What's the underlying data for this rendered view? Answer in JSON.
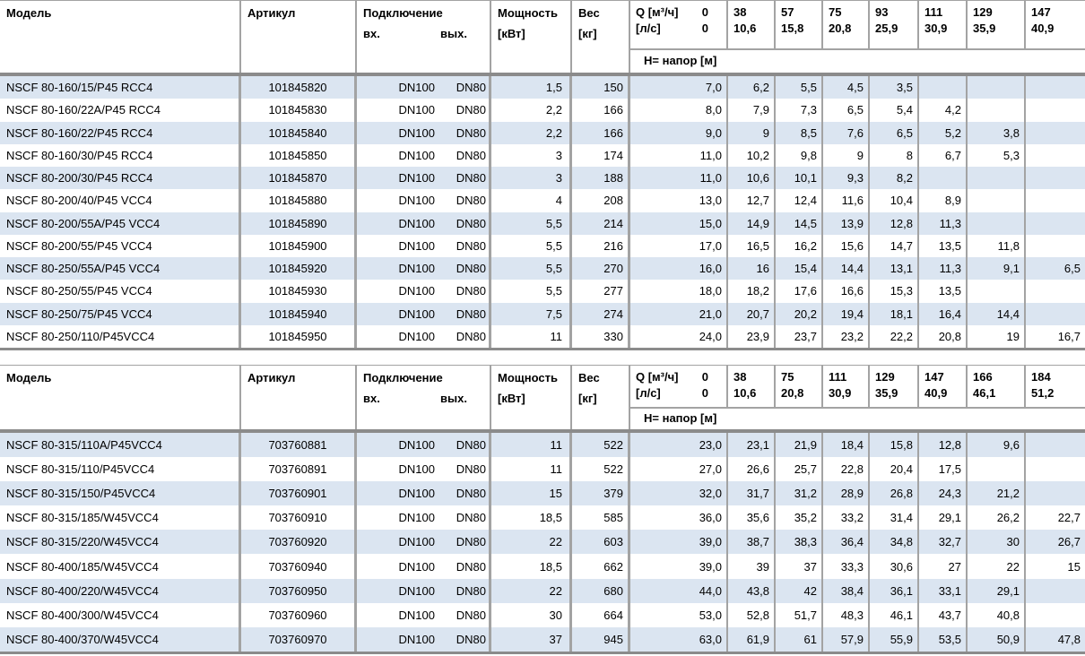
{
  "colors": {
    "stripe": "#dbe5f1",
    "grid": "#a3a3a3",
    "strong_grid": "#8b8b8b",
    "text": "#000000"
  },
  "labels": {
    "model": "Модель",
    "article": "Артикул",
    "connection": "Подключение",
    "conn_in": "вх.",
    "conn_out": "вых.",
    "power_line1": "Мощность",
    "power_line2": "[кВт]",
    "weight_line1": "Вес",
    "weight_line2": "[кг]",
    "q_line1": "Q [м³/ч]",
    "q_line2": "[л/с]",
    "head_row": "H= напор [м]"
  },
  "tables": [
    {
      "q_m3h": [
        "0",
        "38",
        "57",
        "75",
        "93",
        "111",
        "129",
        "147"
      ],
      "q_ls": [
        "0",
        "10,6",
        "15,8",
        "20,8",
        "25,9",
        "30,9",
        "35,9",
        "40,9"
      ],
      "rows": [
        {
          "model": "NSCF 80-160/15/P45 RCC4",
          "article": "101845820",
          "conn_in": "DN100",
          "conn_out": "DN80",
          "power": "1,5",
          "weight": "150",
          "h": [
            "7,0",
            "6,2",
            "5,5",
            "4,5",
            "3,5",
            "",
            "",
            ""
          ]
        },
        {
          "model": "NSCF 80-160/22A/P45 RCC4",
          "article": "101845830",
          "conn_in": "DN100",
          "conn_out": "DN80",
          "power": "2,2",
          "weight": "166",
          "h": [
            "8,0",
            "7,9",
            "7,3",
            "6,5",
            "5,4",
            "4,2",
            "",
            ""
          ]
        },
        {
          "model": "NSCF 80-160/22/P45 RCC4",
          "article": "101845840",
          "conn_in": "DN100",
          "conn_out": "DN80",
          "power": "2,2",
          "weight": "166",
          "h": [
            "9,0",
            "9",
            "8,5",
            "7,6",
            "6,5",
            "5,2",
            "3,8",
            ""
          ]
        },
        {
          "model": "NSCF 80-160/30/P45 RCC4",
          "article": "101845850",
          "conn_in": "DN100",
          "conn_out": "DN80",
          "power": "3",
          "weight": "174",
          "h": [
            "11,0",
            "10,2",
            "9,8",
            "9",
            "8",
            "6,7",
            "5,3",
            ""
          ]
        },
        {
          "model": "NSCF 80-200/30/P45 RCC4",
          "article": "101845870",
          "conn_in": "DN100",
          "conn_out": "DN80",
          "power": "3",
          "weight": "188",
          "h": [
            "11,0",
            "10,6",
            "10,1",
            "9,3",
            "8,2",
            "",
            "",
            ""
          ]
        },
        {
          "model": "NSCF 80-200/40/P45 VCC4",
          "article": "101845880",
          "conn_in": "DN100",
          "conn_out": "DN80",
          "power": "4",
          "weight": "208",
          "h": [
            "13,0",
            "12,7",
            "12,4",
            "11,6",
            "10,4",
            "8,9",
            "",
            ""
          ]
        },
        {
          "model": "NSCF 80-200/55A/P45 VCC4",
          "article": "101845890",
          "conn_in": "DN100",
          "conn_out": "DN80",
          "power": "5,5",
          "weight": "214",
          "h": [
            "15,0",
            "14,9",
            "14,5",
            "13,9",
            "12,8",
            "11,3",
            "",
            ""
          ]
        },
        {
          "model": "NSCF 80-200/55/P45 VCC4",
          "article": "101845900",
          "conn_in": "DN100",
          "conn_out": "DN80",
          "power": "5,5",
          "weight": "216",
          "h": [
            "17,0",
            "16,5",
            "16,2",
            "15,6",
            "14,7",
            "13,5",
            "11,8",
            ""
          ]
        },
        {
          "model": "NSCF 80-250/55A/P45 VCC4",
          "article": "101845920",
          "conn_in": "DN100",
          "conn_out": "DN80",
          "power": "5,5",
          "weight": "270",
          "h": [
            "16,0",
            "16",
            "15,4",
            "14,4",
            "13,1",
            "11,3",
            "9,1",
            "6,5"
          ]
        },
        {
          "model": "NSCF 80-250/55/P45 VCC4",
          "article": "101845930",
          "conn_in": "DN100",
          "conn_out": "DN80",
          "power": "5,5",
          "weight": "277",
          "h": [
            "18,0",
            "18,2",
            "17,6",
            "16,6",
            "15,3",
            "13,5",
            "",
            ""
          ]
        },
        {
          "model": "NSCF 80-250/75/P45 VCC4",
          "article": "101845940",
          "conn_in": "DN100",
          "conn_out": "DN80",
          "power": "7,5",
          "weight": "274",
          "h": [
            "21,0",
            "20,7",
            "20,2",
            "19,4",
            "18,1",
            "16,4",
            "14,4",
            ""
          ]
        },
        {
          "model": "NSCF 80-250/110/P45VCC4",
          "article": "101845950",
          "conn_in": "DN100",
          "conn_out": "DN80",
          "power": "11",
          "weight": "330",
          "h": [
            "24,0",
            "23,9",
            "23,7",
            "23,2",
            "22,2",
            "20,8",
            "19",
            "16,7"
          ]
        }
      ]
    },
    {
      "q_m3h": [
        "0",
        "38",
        "75",
        "111",
        "129",
        "147",
        "166",
        "184"
      ],
      "q_ls": [
        "0",
        "10,6",
        "20,8",
        "30,9",
        "35,9",
        "40,9",
        "46,1",
        "51,2"
      ],
      "rows": [
        {
          "model": "NSCF 80-315/110A/P45VCC4",
          "article": "703760881",
          "conn_in": "DN100",
          "conn_out": "DN80",
          "power": "11",
          "weight": "522",
          "h": [
            "23,0",
            "23,1",
            "21,9",
            "18,4",
            "15,8",
            "12,8",
            "9,6",
            ""
          ]
        },
        {
          "model": "NSCF 80-315/110/P45VCC4",
          "article": "703760891",
          "conn_in": "DN100",
          "conn_out": "DN80",
          "power": "11",
          "weight": "522",
          "h": [
            "27,0",
            "26,6",
            "25,7",
            "22,8",
            "20,4",
            "17,5",
            "",
            ""
          ]
        },
        {
          "model": "NSCF 80-315/150/P45VCC4",
          "article": "703760901",
          "conn_in": "DN100",
          "conn_out": "DN80",
          "power": "15",
          "weight": "379",
          "h": [
            "32,0",
            "31,7",
            "31,2",
            "28,9",
            "26,8",
            "24,3",
            "21,2",
            ""
          ]
        },
        {
          "model": "NSCF 80-315/185/W45VCC4",
          "article": "703760910",
          "conn_in": "DN100",
          "conn_out": "DN80",
          "power": "18,5",
          "weight": "585",
          "h": [
            "36,0",
            "35,6",
            "35,2",
            "33,2",
            "31,4",
            "29,1",
            "26,2",
            "22,7"
          ]
        },
        {
          "model": "NSCF 80-315/220/W45VCC4",
          "article": "703760920",
          "conn_in": "DN100",
          "conn_out": "DN80",
          "power": "22",
          "weight": "603",
          "h": [
            "39,0",
            "38,7",
            "38,3",
            "36,4",
            "34,8",
            "32,7",
            "30",
            "26,7"
          ]
        },
        {
          "model": "NSCF 80-400/185/W45VCC4",
          "article": "703760940",
          "conn_in": "DN100",
          "conn_out": "DN80",
          "power": "18,5",
          "weight": "662",
          "h": [
            "39,0",
            "39",
            "37",
            "33,3",
            "30,6",
            "27",
            "22",
            "15"
          ]
        },
        {
          "model": "NSCF 80-400/220/W45VCC4",
          "article": "703760950",
          "conn_in": "DN100",
          "conn_out": "DN80",
          "power": "22",
          "weight": "680",
          "h": [
            "44,0",
            "43,8",
            "42",
            "38,4",
            "36,1",
            "33,1",
            "29,1",
            ""
          ]
        },
        {
          "model": "NSCF 80-400/300/W45VCC4",
          "article": "703760960",
          "conn_in": "DN100",
          "conn_out": "DN80",
          "power": "30",
          "weight": "664",
          "h": [
            "53,0",
            "52,8",
            "51,7",
            "48,3",
            "46,1",
            "43,7",
            "40,8",
            ""
          ]
        },
        {
          "model": "NSCF 80-400/370/W45VCC4",
          "article": "703760970",
          "conn_in": "DN100",
          "conn_out": "DN80",
          "power": "37",
          "weight": "945",
          "h": [
            "63,0",
            "61,9",
            "61",
            "57,9",
            "55,9",
            "53,5",
            "50,9",
            "47,8"
          ]
        }
      ]
    }
  ]
}
